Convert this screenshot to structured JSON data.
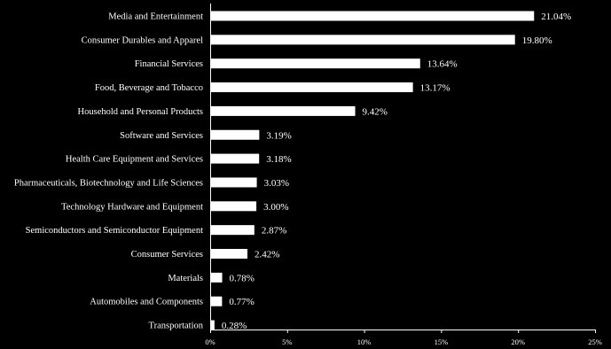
{
  "chart_data": {
    "type": "bar",
    "orientation": "horizontal",
    "categories": [
      "Media and Entertainment",
      "Consumer Durables and Apparel",
      "Financial Services",
      "Food, Beverage and Tobacco",
      "Household and Personal Products",
      "Software and Services",
      "Health Care Equipment and Services",
      "Pharmaceuticals, Biotechnology and Life Sciences",
      "Technology Hardware and Equipment",
      "Semiconductors and Semiconductor Equipment",
      "Consumer Services",
      "Materials",
      "Automobiles and Components",
      "Transportation"
    ],
    "values": [
      21.04,
      19.8,
      13.64,
      13.17,
      9.42,
      3.19,
      3.18,
      3.03,
      3.0,
      2.87,
      2.42,
      0.78,
      0.77,
      0.28
    ],
    "value_labels": [
      "21.04%",
      "19.80%",
      "13.64%",
      "13.17%",
      "9.42%",
      "3.19%",
      "3.18%",
      "3.03%",
      "3.00%",
      "2.87%",
      "2.42%",
      "0.78%",
      "0.77%",
      "0.28%"
    ],
    "xlim": [
      0,
      25
    ],
    "x_ticks": [
      0,
      5,
      10,
      15,
      20,
      25
    ],
    "x_tick_labels": [
      "0%",
      "5%",
      "10%",
      "15%",
      "20%",
      "25%"
    ],
    "grid": false,
    "legend": "none",
    "colors": {
      "background": "#000000",
      "bar": "#ffffff",
      "text": "#ffffff",
      "axis": "#ffffff"
    }
  }
}
